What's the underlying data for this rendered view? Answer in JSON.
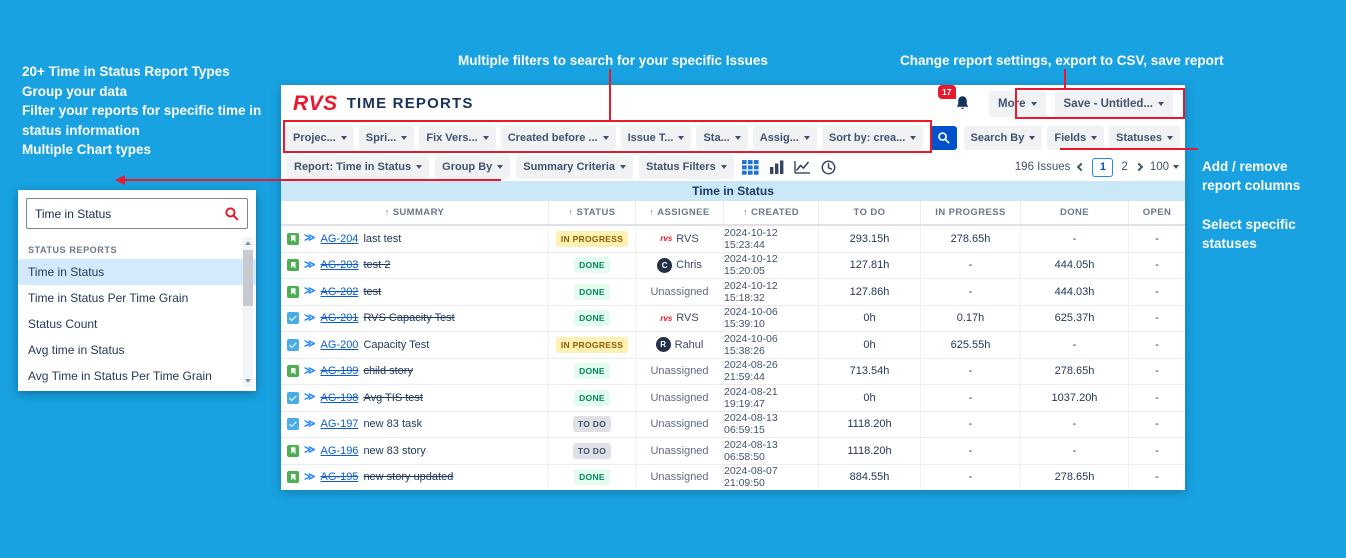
{
  "colors": {
    "background_blue": "#18A2E2",
    "annotation_red": "#E8192C",
    "accent_blue": "#0052CC",
    "table_title_blue": "#CBE8F8"
  },
  "annotations": {
    "left_lines": [
      "20+ Time in Status Report Types",
      "Group your data",
      "Filter your reports for specific time in status information",
      "Multiple Chart types"
    ],
    "filters_label": "Multiple filters to search for your specific Issues",
    "settings_label": "Change report settings, export to CSV, save report",
    "columns_label": "Add / remove report columns",
    "statuses_label": "Select specific statuses"
  },
  "picker": {
    "search_value": "Time in Status",
    "group_label": "STATUS REPORTS",
    "items": [
      {
        "label": "Time in Status",
        "selected": true
      },
      {
        "label": "Time in Status Per Time Grain",
        "selected": false
      },
      {
        "label": "Status Count",
        "selected": false
      },
      {
        "label": "Avg time in Status",
        "selected": false
      },
      {
        "label": "Avg Time in Status Per Time Grain",
        "selected": false
      }
    ]
  },
  "header": {
    "logo": "RVS",
    "title": "TIME REPORTS",
    "notification_badge": "17",
    "more_label": "More",
    "save_label": "Save - Untitled..."
  },
  "filters": [
    "Projec...",
    "Spri...",
    "Fix Vers...",
    "Created before ...",
    "Issue T...",
    "Sta...",
    "Assig...",
    "Sort by: crea..."
  ],
  "right_buttons": [
    "Search By",
    "Fields",
    "Statuses"
  ],
  "toolbar2": {
    "buttons": [
      "Report: Time in Status",
      "Group By",
      "Summary Criteria",
      "Status Filters"
    ],
    "issues_count": "196 Issues",
    "page1": "1",
    "page2": "2",
    "page_size": "100"
  },
  "table": {
    "title": "Time in Status",
    "columns": [
      {
        "label": "SUMMARY",
        "sorted": true
      },
      {
        "label": "STATUS",
        "sorted": true
      },
      {
        "label": "ASSIGNEE",
        "sorted": true
      },
      {
        "label": "CREATED",
        "sorted": true
      },
      {
        "label": "TO DO",
        "sorted": false
      },
      {
        "label": "IN PROGRESS",
        "sorted": false
      },
      {
        "label": "DONE",
        "sorted": false
      },
      {
        "label": "OPEN",
        "sorted": false
      }
    ],
    "rows": [
      {
        "type": "story",
        "key": "AG-204",
        "summary": "last test",
        "struck": false,
        "status": "IN PROGRESS",
        "status_kind": "inprogress",
        "assignee": "RVS",
        "assignee_kind": "rvs",
        "assignee_initial": "",
        "created": "2024-10-12 15:23:44",
        "todo": "293.15h",
        "in_progress": "278.65h",
        "done": "-",
        "open": "-"
      },
      {
        "type": "story",
        "key": "AG-203",
        "summary": "test 2",
        "struck": true,
        "status": "DONE",
        "status_kind": "done",
        "assignee": "Chris",
        "assignee_kind": "avatar",
        "assignee_initial": "C",
        "created": "2024-10-12 15:20:05",
        "todo": "127.81h",
        "in_progress": "-",
        "done": "444.05h",
        "open": "-"
      },
      {
        "type": "story",
        "key": "AG-202",
        "summary": "test",
        "struck": true,
        "status": "DONE",
        "status_kind": "done",
        "assignee": "Unassigned",
        "assignee_kind": "none",
        "assignee_initial": "",
        "created": "2024-10-12 15:18:32",
        "todo": "127.86h",
        "in_progress": "-",
        "done": "444.03h",
        "open": "-"
      },
      {
        "type": "task",
        "key": "AG-201",
        "summary": "RVS Capacity Test",
        "struck": true,
        "status": "DONE",
        "status_kind": "done",
        "assignee": "RVS",
        "assignee_kind": "rvs",
        "assignee_initial": "",
        "created": "2024-10-06 15:39:10",
        "todo": "0h",
        "in_progress": "0.17h",
        "done": "625.37h",
        "open": "-"
      },
      {
        "type": "task",
        "key": "AG-200",
        "summary": "Capacity Test",
        "struck": false,
        "status": "IN PROGRESS",
        "status_kind": "inprogress",
        "assignee": "Rahul",
        "assignee_kind": "avatar",
        "assignee_initial": "R",
        "created": "2024-10-06 15:38:26",
        "todo": "0h",
        "in_progress": "625.55h",
        "done": "-",
        "open": "-"
      },
      {
        "type": "story",
        "key": "AG-199",
        "summary": "child story",
        "struck": true,
        "status": "DONE",
        "status_kind": "done",
        "assignee": "Unassigned",
        "assignee_kind": "none",
        "assignee_initial": "",
        "created": "2024-08-26 21:59:44",
        "todo": "713.54h",
        "in_progress": "-",
        "done": "278.65h",
        "open": "-"
      },
      {
        "type": "task",
        "key": "AG-198",
        "summary": "Avg TIS test",
        "struck": true,
        "status": "DONE",
        "status_kind": "done",
        "assignee": "Unassigned",
        "assignee_kind": "none",
        "assignee_initial": "",
        "created": "2024-08-21 19:19:47",
        "todo": "0h",
        "in_progress": "-",
        "done": "1037.20h",
        "open": "-"
      },
      {
        "type": "task",
        "key": "AG-197",
        "summary": "new 83 task",
        "struck": false,
        "status": "TO DO",
        "status_kind": "todo",
        "assignee": "Unassigned",
        "assignee_kind": "none",
        "assignee_initial": "",
        "created": "2024-08-13 06:59:15",
        "todo": "1118.20h",
        "in_progress": "-",
        "done": "-",
        "open": "-"
      },
      {
        "type": "story",
        "key": "AG-196",
        "summary": "new 83 story",
        "struck": false,
        "status": "TO DO",
        "status_kind": "todo",
        "assignee": "Unassigned",
        "assignee_kind": "none",
        "assignee_initial": "",
        "created": "2024-08-13 06:58:50",
        "todo": "1118.20h",
        "in_progress": "-",
        "done": "-",
        "open": "-"
      },
      {
        "type": "story",
        "key": "AG-195",
        "summary": "new story updated",
        "struck": true,
        "status": "DONE",
        "status_kind": "done",
        "assignee": "Unassigned",
        "assignee_kind": "none",
        "assignee_initial": "",
        "created": "2024-08-07 21:09:50",
        "todo": "884.55h",
        "in_progress": "-",
        "done": "278.65h",
        "open": "-"
      }
    ]
  }
}
